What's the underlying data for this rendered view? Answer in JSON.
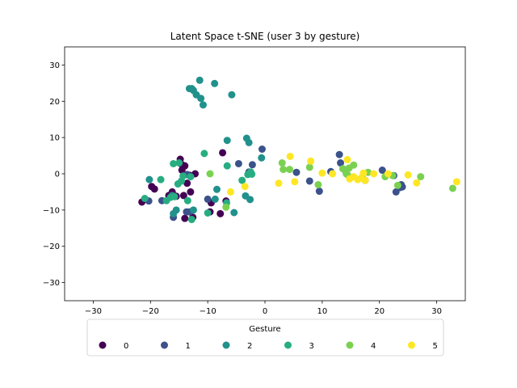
{
  "chart_data": {
    "type": "scatter",
    "title": "Latent Space t-SNE (user 3 by gesture)",
    "xlabel": "",
    "ylabel": "",
    "xlim": [
      -35,
      35
    ],
    "ylim": [
      -35,
      35
    ],
    "xticks": [
      -30,
      -20,
      -10,
      0,
      10,
      20,
      30
    ],
    "yticks": [
      -30,
      -20,
      -10,
      0,
      10,
      20,
      30
    ],
    "grid": false,
    "legend": {
      "title": "Gesture",
      "placement": "bottom-center",
      "columns": 6
    },
    "series": [
      {
        "name": "0",
        "color": "#440154",
        "points": [
          [
            -21.5,
            -7.8
          ],
          [
            -19.8,
            -3.5
          ],
          [
            -19.3,
            -4.2
          ],
          [
            -16.8,
            -6.0
          ],
          [
            -16.2,
            -5.0
          ],
          [
            -15.5,
            -6.2
          ],
          [
            -14.8,
            4.0
          ],
          [
            -14.5,
            2.5
          ],
          [
            -14.5,
            1.0
          ],
          [
            -14.0,
            2.2
          ],
          [
            -13.6,
            -2.6
          ],
          [
            -13.2,
            -0.4
          ],
          [
            -13.0,
            -5.0
          ],
          [
            -12.2,
            0.0
          ],
          [
            -14.0,
            -12.3
          ],
          [
            -12.6,
            -12.0
          ],
          [
            -14.2,
            -6.0
          ],
          [
            -9.6,
            -10.5
          ],
          [
            -9.4,
            -8.0
          ],
          [
            -7.8,
            -11.0
          ],
          [
            -6.8,
            -7.5
          ],
          [
            -7.4,
            5.8
          ]
        ]
      },
      {
        "name": "1",
        "color": "#3b528b",
        "points": [
          [
            -20.3,
            -7.5
          ],
          [
            -18.0,
            -7.4
          ],
          [
            -16.0,
            -12.0
          ],
          [
            -13.7,
            -10.5
          ],
          [
            -13.2,
            -10.5
          ],
          [
            -10.0,
            -7.0
          ],
          [
            -4.6,
            2.8
          ],
          [
            -2.8,
            0.5
          ],
          [
            -2.2,
            2.5
          ],
          [
            -0.5,
            6.8
          ],
          [
            5.5,
            0.4
          ],
          [
            7.8,
            -2.0
          ],
          [
            9.5,
            -4.8
          ],
          [
            11.5,
            0.6
          ],
          [
            13.0,
            5.3
          ],
          [
            13.2,
            3.0
          ],
          [
            14.0,
            1.0
          ],
          [
            17.5,
            -1.8
          ],
          [
            20.5,
            1.0
          ],
          [
            22.5,
            -0.5
          ],
          [
            22.9,
            -5.0
          ],
          [
            24.0,
            -3.6
          ],
          [
            23.6,
            -3.8
          ],
          [
            23.8,
            -3.0
          ],
          [
            -13.6,
            -0.2
          ]
        ]
      },
      {
        "name": "2",
        "color": "#21918c",
        "points": [
          [
            -20.2,
            -1.6
          ],
          [
            -16.2,
            -6.0
          ],
          [
            -16.0,
            -11.0
          ],
          [
            -13.2,
            23.5
          ],
          [
            -12.8,
            23.5
          ],
          [
            -12.5,
            23.0
          ],
          [
            -12.0,
            21.8
          ],
          [
            -11.4,
            25.8
          ],
          [
            -11.2,
            20.8
          ],
          [
            -10.8,
            19.0
          ],
          [
            -8.8,
            24.9
          ],
          [
            -8.4,
            -4.3
          ],
          [
            -8.7,
            -7.0
          ],
          [
            -6.6,
            9.2
          ],
          [
            -5.8,
            21.8
          ],
          [
            -5.4,
            -10.7
          ],
          [
            -3.4,
            -6.1
          ],
          [
            -3.2,
            9.8
          ],
          [
            -2.8,
            8.6
          ],
          [
            -2.6,
            -7.1
          ],
          [
            -0.6,
            4.4
          ],
          [
            -12.5,
            -10.0
          ],
          [
            -15.5,
            -10.0
          ]
        ]
      },
      {
        "name": "3",
        "color": "#27ad81",
        "points": [
          [
            -21.0,
            -6.8
          ],
          [
            -18.2,
            -1.6
          ],
          [
            -17.2,
            -7.4
          ],
          [
            -16.5,
            -6.5
          ],
          [
            -16.0,
            2.8
          ],
          [
            -15.8,
            -6.3
          ],
          [
            -15.2,
            -2.8
          ],
          [
            -14.6,
            -2.0
          ],
          [
            -14.3,
            -0.6
          ],
          [
            -13.5,
            -7.4
          ],
          [
            -13.0,
            -0.8
          ],
          [
            -12.8,
            -12.6
          ],
          [
            -10.6,
            5.6
          ],
          [
            -10.0,
            -10.8
          ],
          [
            -6.6,
            2.2
          ],
          [
            -6.7,
            -8.0
          ],
          [
            -4.0,
            -1.8
          ],
          [
            -3.0,
            -0.2
          ],
          [
            -2.5,
            0.5
          ],
          [
            -2.3,
            -0.1
          ],
          [
            -15.0,
            3.0
          ]
        ]
      },
      {
        "name": "4",
        "color": "#7ad151",
        "points": [
          [
            -9.6,
            0.0
          ],
          [
            -6.8,
            -9.2
          ],
          [
            3.0,
            3.0
          ],
          [
            3.2,
            1.2
          ],
          [
            4.3,
            1.2
          ],
          [
            7.8,
            1.8
          ],
          [
            9.3,
            -3.0
          ],
          [
            13.6,
            1.4
          ],
          [
            14.4,
            -0.2
          ],
          [
            14.7,
            1.6
          ],
          [
            15.5,
            2.4
          ],
          [
            17.0,
            -1.0
          ],
          [
            18.0,
            0.4
          ],
          [
            21.0,
            -0.8
          ],
          [
            22.3,
            -0.5
          ],
          [
            23.2,
            -3.2
          ],
          [
            27.2,
            -0.8
          ],
          [
            32.8,
            -4.0
          ],
          [
            14.2,
            0.0
          ]
        ]
      },
      {
        "name": "5",
        "color": "#fde725",
        "points": [
          [
            -6.0,
            -5.0
          ],
          [
            -3.5,
            -3.5
          ],
          [
            2.4,
            -2.6
          ],
          [
            4.4,
            4.8
          ],
          [
            5.2,
            -2.2
          ],
          [
            8.0,
            3.5
          ],
          [
            10.0,
            0.2
          ],
          [
            11.8,
            0.0
          ],
          [
            14.4,
            3.9
          ],
          [
            14.8,
            -1.4
          ],
          [
            15.5,
            -0.8
          ],
          [
            16.2,
            -1.6
          ],
          [
            16.8,
            -1.2
          ],
          [
            17.2,
            0.2
          ],
          [
            17.5,
            -1.8
          ],
          [
            19.0,
            0.0
          ],
          [
            21.5,
            0.0
          ],
          [
            25.0,
            -0.3
          ],
          [
            26.5,
            -2.5
          ],
          [
            33.5,
            -2.2
          ]
        ]
      }
    ]
  }
}
